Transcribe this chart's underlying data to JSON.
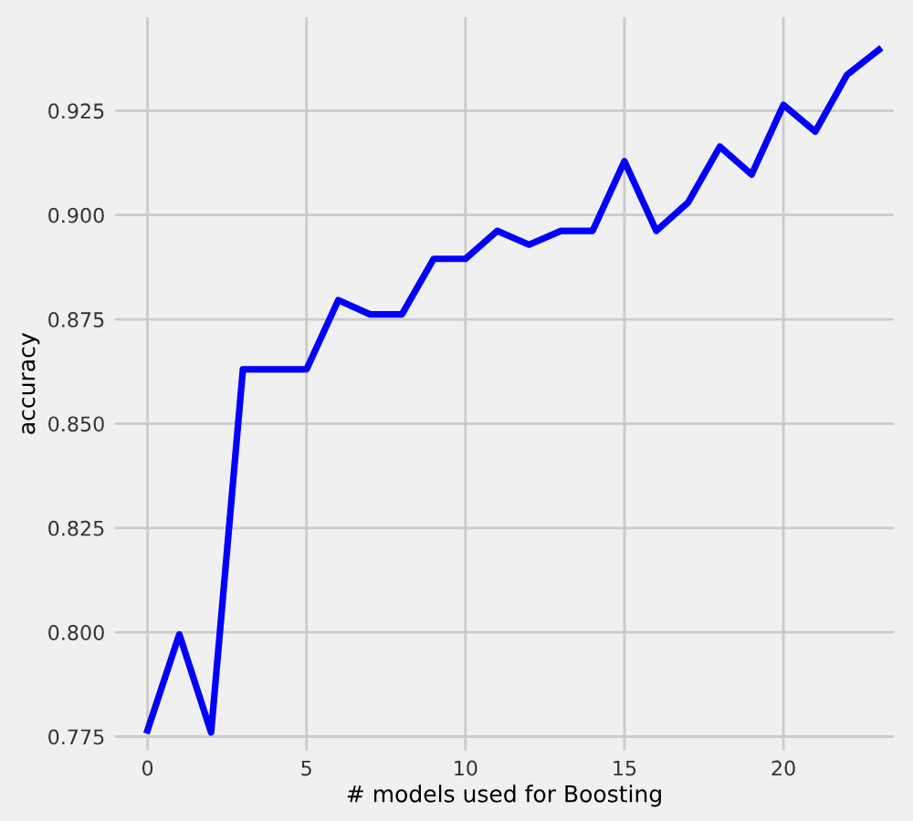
{
  "chart_data": {
    "type": "line",
    "xlabel": "# models used for Boosting",
    "ylabel": "accuracy",
    "x": [
      0,
      1,
      2,
      3,
      4,
      5,
      6,
      7,
      8,
      9,
      10,
      11,
      12,
      13,
      14,
      15,
      16,
      17,
      18,
      19,
      20,
      21,
      22,
      23
    ],
    "series": [
      {
        "color": "#0000ff",
        "values": [
          0.7765,
          0.7995,
          0.776,
          0.863,
          0.863,
          0.863,
          0.8796,
          0.8762,
          0.8762,
          0.8895,
          0.8895,
          0.8962,
          0.8929,
          0.8962,
          0.8962,
          0.9129,
          0.8962,
          0.903,
          0.9164,
          0.9097,
          0.9264,
          0.92,
          0.9336,
          0.9396
        ]
      }
    ],
    "xlim": [
      -1.05,
      23.5
    ],
    "ylim": [
      0.7715,
      0.9476
    ],
    "xticks": [
      0,
      5,
      10,
      15,
      20
    ],
    "yticks": [
      {
        "value": 0.775,
        "label": "0.775"
      },
      {
        "value": 0.8,
        "label": "0.800"
      },
      {
        "value": 0.825,
        "label": "0.825"
      },
      {
        "value": 0.85,
        "label": "0.850"
      },
      {
        "value": 0.875,
        "label": "0.875"
      },
      {
        "value": 0.9,
        "label": "0.900"
      },
      {
        "value": 0.925,
        "label": "0.925"
      }
    ],
    "grid": true,
    "line_style": "solid"
  }
}
